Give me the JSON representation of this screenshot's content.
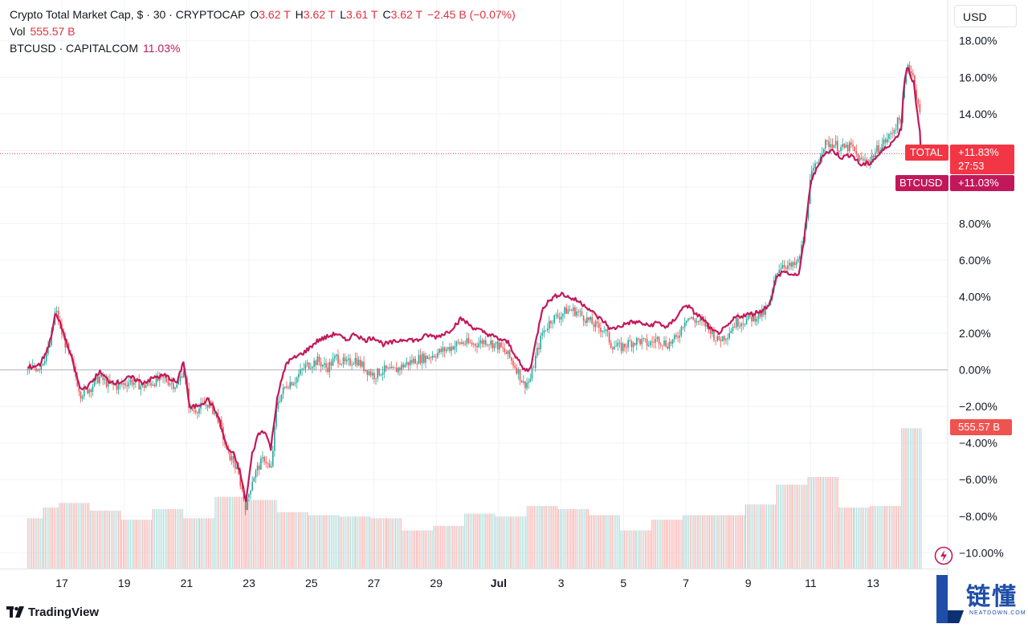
{
  "legend": {
    "symbol": "Crypto Total Market Cap, $ · 30 · CRYPTOCAP",
    "o_label": "O",
    "o_value": "3.62 T",
    "h_label": "H",
    "h_value": "3.62 T",
    "l_label": "L",
    "l_value": "3.61 T",
    "c_label": "C",
    "c_value": "3.62 T",
    "change": "−2.45 B (−0.07%)",
    "vol_label": "Vol",
    "vol_value": "555.57 B",
    "compare_symbol": "BTCUSD · CAPITALCOM",
    "compare_value": "11.03%"
  },
  "currency_button": "USD",
  "tags": {
    "total_name": "TOTAL",
    "total_value": "+11.83%",
    "countdown": "27:53",
    "btc_name": "BTCUSD",
    "btc_value": "+11.03%",
    "volume_value": "555.57 B"
  },
  "branding": {
    "tradingview": "TradingView",
    "watermark_cn": "链懂",
    "watermark_en": "NEATDOWN.COM"
  },
  "colors": {
    "up": "#26a69a",
    "down": "#ef5350",
    "btc": "#c2185b",
    "total_tag": "#f23645",
    "btc_tag": "#c2185b",
    "grid": "#f0f3fa",
    "zero": "#b2b5be"
  },
  "chart_data": {
    "type": "line",
    "title": "Crypto Total Market Cap, $ · 30 · CRYPTOCAP vs BTCUSD · CAPITALCOM",
    "xlabel": "",
    "ylabel": "% change",
    "ylim": [
      -10.5,
      18.5
    ],
    "y_ticks": [
      "18.00%",
      "16.00%",
      "14.00%",
      "12.00%",
      "10.00%",
      "8.00%",
      "6.00%",
      "4.00%",
      "2.00%",
      "0.00%",
      "−2.00%",
      "−4.00%",
      "−6.00%",
      "−8.00%",
      "−10.00%"
    ],
    "y_tick_values": [
      18,
      16,
      14,
      12,
      10,
      8,
      6,
      4,
      2,
      0,
      -2,
      -4,
      -6,
      -8,
      -10
    ],
    "x_range_days": [
      15.9,
      14.55
    ],
    "x_ticks": [
      {
        "label": "17",
        "day": 17
      },
      {
        "label": "19",
        "day": 19
      },
      {
        "label": "21",
        "day": 21
      },
      {
        "label": "23",
        "day": 23
      },
      {
        "label": "25",
        "day": 25
      },
      {
        "label": "27",
        "day": 27
      },
      {
        "label": "29",
        "day": 29
      },
      {
        "label": "Jul",
        "day": 31
      },
      {
        "label": "3",
        "day": 33
      },
      {
        "label": "5",
        "day": 35
      },
      {
        "label": "7",
        "day": 37
      },
      {
        "label": "9",
        "day": 39
      },
      {
        "label": "11",
        "day": 41
      },
      {
        "label": "13",
        "day": 43
      }
    ],
    "series": [
      {
        "name": "TOTAL (Crypto Total Market Cap)",
        "style": "candles",
        "points": [
          [
            15.9,
            0
          ],
          [
            16.3,
            0.2
          ],
          [
            16.6,
            1.2
          ],
          [
            16.8,
            3.3
          ],
          [
            17.0,
            2.0
          ],
          [
            17.3,
            0.5
          ],
          [
            17.6,
            -1.3
          ],
          [
            17.9,
            -1.0
          ],
          [
            18.2,
            -0.4
          ],
          [
            18.5,
            -0.8
          ],
          [
            18.8,
            -0.9
          ],
          [
            19.2,
            -0.6
          ],
          [
            19.6,
            -0.9
          ],
          [
            20.0,
            -0.6
          ],
          [
            20.3,
            -0.5
          ],
          [
            20.7,
            -0.9
          ],
          [
            20.9,
            0.1
          ],
          [
            21.1,
            -2.2
          ],
          [
            21.4,
            -2.1
          ],
          [
            21.7,
            -1.8
          ],
          [
            22.0,
            -2.6
          ],
          [
            22.3,
            -4.5
          ],
          [
            22.5,
            -5.0
          ],
          [
            22.7,
            -6.0
          ],
          [
            22.9,
            -7.5
          ],
          [
            23.1,
            -6.0
          ],
          [
            23.3,
            -5.3
          ],
          [
            23.5,
            -4.8
          ],
          [
            23.7,
            -5.6
          ],
          [
            23.9,
            -1.8
          ],
          [
            24.2,
            -0.8
          ],
          [
            24.5,
            -0.5
          ],
          [
            24.8,
            0.2
          ],
          [
            25.2,
            0.5
          ],
          [
            25.5,
            0.1
          ],
          [
            25.8,
            0.7
          ],
          [
            26.1,
            0.3
          ],
          [
            26.4,
            0.6
          ],
          [
            26.7,
            0.1
          ],
          [
            27.0,
            -0.3
          ],
          [
            27.3,
            0.0
          ],
          [
            27.6,
            -0.1
          ],
          [
            28.0,
            0.3
          ],
          [
            28.4,
            0.6
          ],
          [
            28.7,
            0.7
          ],
          [
            29.0,
            0.9
          ],
          [
            29.4,
            1.2
          ],
          [
            29.8,
            1.5
          ],
          [
            30.2,
            1.4
          ],
          [
            30.6,
            1.6
          ],
          [
            31.0,
            1.3
          ],
          [
            31.3,
            0.8
          ],
          [
            31.6,
            0.0
          ],
          [
            31.8,
            -0.8
          ],
          [
            32.0,
            -0.6
          ],
          [
            32.2,
            0.8
          ],
          [
            32.4,
            2.0
          ],
          [
            32.7,
            2.8
          ],
          [
            33.0,
            3.0
          ],
          [
            33.2,
            3.3
          ],
          [
            33.5,
            3.2
          ],
          [
            33.8,
            2.8
          ],
          [
            34.1,
            2.4
          ],
          [
            34.4,
            2.2
          ],
          [
            34.6,
            1.4
          ],
          [
            34.9,
            1.2
          ],
          [
            35.2,
            1.5
          ],
          [
            35.5,
            1.6
          ],
          [
            35.8,
            1.4
          ],
          [
            36.1,
            1.7
          ],
          [
            36.4,
            1.4
          ],
          [
            36.7,
            1.7
          ],
          [
            37.0,
            2.9
          ],
          [
            37.3,
            2.7
          ],
          [
            37.6,
            2.5
          ],
          [
            37.8,
            2.2
          ],
          [
            38.0,
            1.6
          ],
          [
            38.3,
            1.9
          ],
          [
            38.6,
            2.6
          ],
          [
            38.9,
            2.7
          ],
          [
            39.2,
            2.9
          ],
          [
            39.5,
            3.1
          ],
          [
            39.7,
            3.6
          ],
          [
            39.9,
            5.4
          ],
          [
            40.1,
            5.8
          ],
          [
            40.4,
            5.6
          ],
          [
            40.6,
            5.9
          ],
          [
            40.8,
            7.4
          ],
          [
            41.0,
            10.5
          ],
          [
            41.2,
            11.3
          ],
          [
            41.4,
            12.3
          ],
          [
            41.7,
            12.4
          ],
          [
            42.0,
            12.1
          ],
          [
            42.3,
            12.2
          ],
          [
            42.6,
            11.4
          ],
          [
            42.9,
            11.5
          ],
          [
            43.2,
            12.2
          ],
          [
            43.5,
            12.7
          ],
          [
            43.7,
            13.3
          ],
          [
            43.9,
            13.8
          ],
          [
            44.0,
            15.5
          ],
          [
            44.1,
            16.8
          ],
          [
            44.3,
            16.0
          ],
          [
            44.4,
            14.8
          ],
          [
            44.5,
            14.0
          ],
          [
            44.55,
            11.9
          ]
        ]
      },
      {
        "name": "BTCUSD · CAPITALCOM",
        "style": "line",
        "points": [
          [
            15.9,
            0.1
          ],
          [
            16.3,
            0.3
          ],
          [
            16.6,
            1.4
          ],
          [
            16.8,
            3.1
          ],
          [
            17.0,
            2.3
          ],
          [
            17.3,
            0.7
          ],
          [
            17.6,
            -1.1
          ],
          [
            17.9,
            -0.8
          ],
          [
            18.2,
            -0.1
          ],
          [
            18.5,
            -0.6
          ],
          [
            18.8,
            -0.7
          ],
          [
            19.2,
            -0.4
          ],
          [
            19.6,
            -0.7
          ],
          [
            20.0,
            -0.4
          ],
          [
            20.3,
            -0.3
          ],
          [
            20.7,
            -0.7
          ],
          [
            20.9,
            0.5
          ],
          [
            21.1,
            -2.1
          ],
          [
            21.4,
            -1.9
          ],
          [
            21.7,
            -1.6
          ],
          [
            22.0,
            -2.5
          ],
          [
            22.3,
            -4.3
          ],
          [
            22.5,
            -4.6
          ],
          [
            22.7,
            -5.5
          ],
          [
            22.9,
            -7.2
          ],
          [
            23.1,
            -4.6
          ],
          [
            23.3,
            -3.5
          ],
          [
            23.5,
            -3.3
          ],
          [
            23.7,
            -4.3
          ],
          [
            23.9,
            -1.5
          ],
          [
            24.2,
            0.4
          ],
          [
            24.5,
            0.7
          ],
          [
            24.8,
            1.0
          ],
          [
            25.2,
            1.6
          ],
          [
            25.5,
            1.8
          ],
          [
            25.8,
            2.0
          ],
          [
            26.1,
            1.6
          ],
          [
            26.4,
            2.0
          ],
          [
            26.7,
            1.6
          ],
          [
            27.0,
            1.8
          ],
          [
            27.3,
            1.4
          ],
          [
            27.6,
            1.5
          ],
          [
            28.0,
            1.7
          ],
          [
            28.4,
            1.6
          ],
          [
            28.7,
            1.9
          ],
          [
            29.0,
            1.8
          ],
          [
            29.4,
            2.1
          ],
          [
            29.8,
            2.8
          ],
          [
            30.2,
            2.3
          ],
          [
            30.6,
            2.0
          ],
          [
            31.0,
            1.7
          ],
          [
            31.3,
            1.5
          ],
          [
            31.6,
            0.6
          ],
          [
            31.8,
            0.0
          ],
          [
            32.0,
            0.0
          ],
          [
            32.2,
            1.6
          ],
          [
            32.4,
            3.4
          ],
          [
            32.7,
            3.9
          ],
          [
            33.0,
            4.2
          ],
          [
            33.2,
            4.0
          ],
          [
            33.5,
            3.8
          ],
          [
            33.8,
            3.5
          ],
          [
            34.1,
            3.0
          ],
          [
            34.4,
            2.6
          ],
          [
            34.6,
            2.2
          ],
          [
            34.9,
            2.4
          ],
          [
            35.2,
            2.6
          ],
          [
            35.5,
            2.6
          ],
          [
            35.8,
            2.4
          ],
          [
            36.1,
            2.6
          ],
          [
            36.4,
            2.3
          ],
          [
            36.7,
            2.9
          ],
          [
            37.0,
            3.6
          ],
          [
            37.3,
            3.1
          ],
          [
            37.6,
            2.7
          ],
          [
            37.8,
            2.2
          ],
          [
            38.0,
            2.0
          ],
          [
            38.3,
            2.3
          ],
          [
            38.6,
            2.9
          ],
          [
            38.9,
            3.0
          ],
          [
            39.2,
            3.1
          ],
          [
            39.5,
            3.3
          ],
          [
            39.7,
            3.7
          ],
          [
            39.9,
            5.0
          ],
          [
            40.1,
            5.4
          ],
          [
            40.4,
            5.2
          ],
          [
            40.6,
            5.1
          ],
          [
            40.8,
            7.2
          ],
          [
            41.0,
            10.3
          ],
          [
            41.2,
            11.0
          ],
          [
            41.4,
            11.8
          ],
          [
            41.7,
            12.0
          ],
          [
            42.0,
            11.6
          ],
          [
            42.3,
            11.8
          ],
          [
            42.6,
            11.2
          ],
          [
            42.9,
            11.3
          ],
          [
            43.2,
            11.8
          ],
          [
            43.5,
            12.3
          ],
          [
            43.7,
            12.6
          ],
          [
            43.9,
            13.2
          ],
          [
            44.0,
            15.8
          ],
          [
            44.1,
            16.6
          ],
          [
            44.3,
            15.7
          ],
          [
            44.4,
            14.2
          ],
          [
            44.5,
            13.0
          ],
          [
            44.55,
            11.0
          ]
        ]
      },
      {
        "name": "Vol",
        "style": "volume",
        "unit": "B",
        "day_bars": [
          [
            15.9,
            165
          ],
          [
            16.4,
            200
          ],
          [
            16.9,
            215
          ],
          [
            17.4,
            215
          ],
          [
            17.9,
            190
          ],
          [
            18.4,
            190
          ],
          [
            18.9,
            160
          ],
          [
            19.4,
            160
          ],
          [
            19.9,
            195
          ],
          [
            20.4,
            195
          ],
          [
            20.9,
            165
          ],
          [
            21.4,
            165
          ],
          [
            21.9,
            235
          ],
          [
            22.4,
            235
          ],
          [
            22.9,
            225
          ],
          [
            23.4,
            225
          ],
          [
            23.9,
            185
          ],
          [
            24.4,
            185
          ],
          [
            24.9,
            175
          ],
          [
            25.4,
            175
          ],
          [
            25.9,
            170
          ],
          [
            26.4,
            170
          ],
          [
            26.9,
            165
          ],
          [
            27.4,
            165
          ],
          [
            27.9,
            125
          ],
          [
            28.4,
            125
          ],
          [
            28.9,
            140
          ],
          [
            29.4,
            140
          ],
          [
            29.9,
            180
          ],
          [
            30.4,
            180
          ],
          [
            30.9,
            170
          ],
          [
            31.4,
            170
          ],
          [
            31.9,
            205
          ],
          [
            32.4,
            205
          ],
          [
            32.9,
            195
          ],
          [
            33.4,
            195
          ],
          [
            33.9,
            175
          ],
          [
            34.4,
            175
          ],
          [
            34.9,
            125
          ],
          [
            35.4,
            125
          ],
          [
            35.9,
            160
          ],
          [
            36.4,
            160
          ],
          [
            36.9,
            175
          ],
          [
            37.4,
            175
          ],
          [
            37.9,
            175
          ],
          [
            38.4,
            175
          ],
          [
            38.9,
            210
          ],
          [
            39.4,
            210
          ],
          [
            39.9,
            275
          ],
          [
            40.4,
            275
          ],
          [
            40.9,
            300
          ],
          [
            41.4,
            300
          ],
          [
            41.9,
            200
          ],
          [
            42.4,
            200
          ],
          [
            42.9,
            205
          ],
          [
            43.4,
            205
          ],
          [
            43.9,
            460
          ],
          [
            44.55,
            460
          ]
        ],
        "latest": "555.57 B"
      }
    ]
  }
}
